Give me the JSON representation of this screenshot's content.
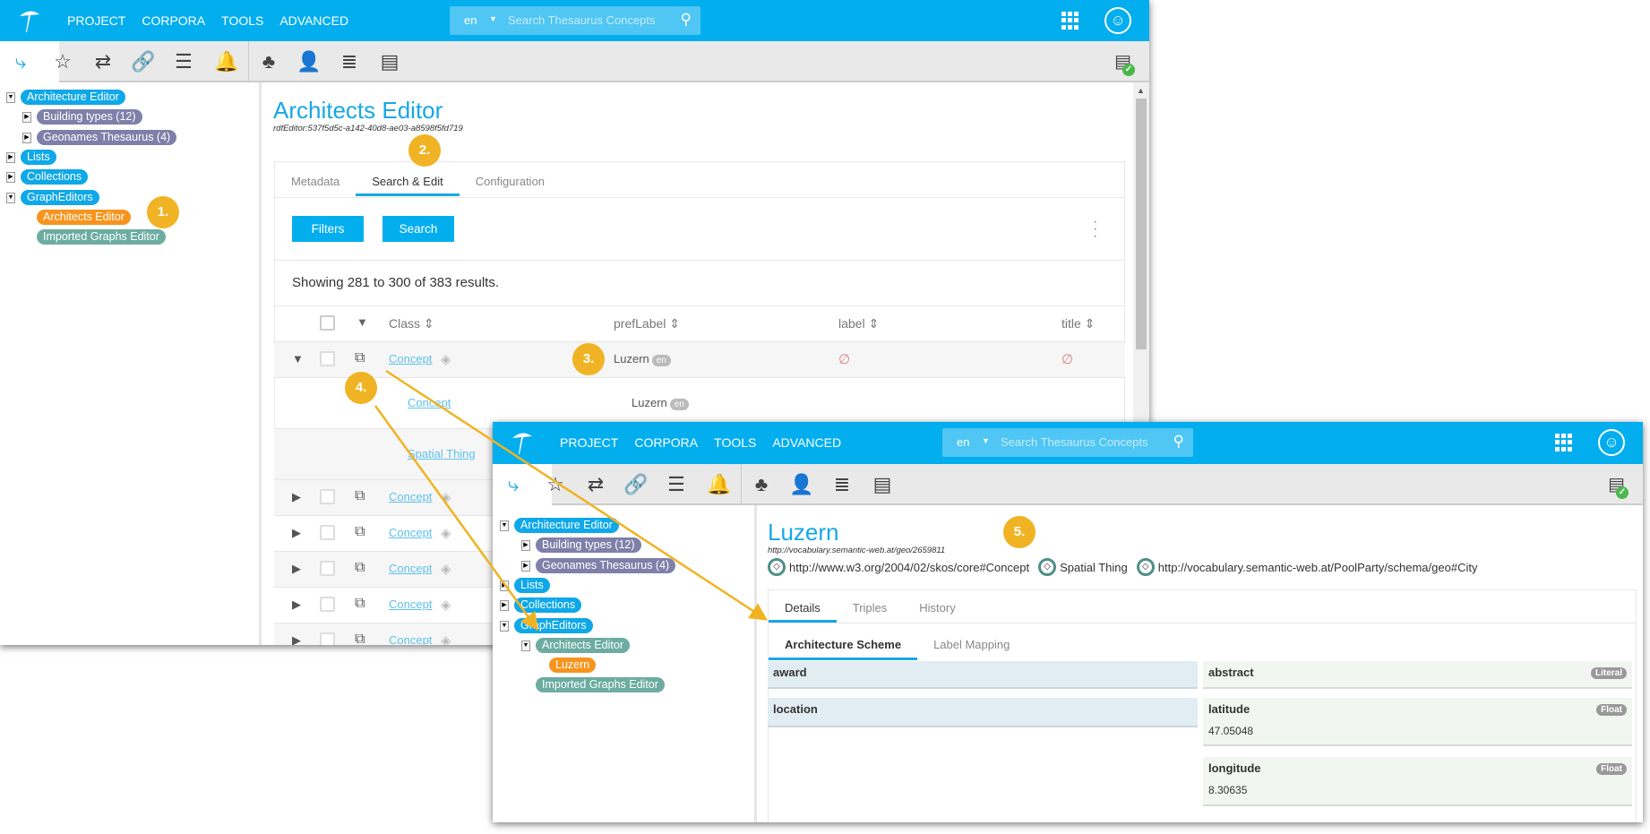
{
  "colors": {
    "header": "#03aeef",
    "accent": "#17a7e6",
    "annotation": "#f0b323",
    "pill_blue": "#0fa8e8",
    "pill_purple": "#7f80a9",
    "pill_orange": "#f7941d",
    "pill_teal": "#6caca1"
  },
  "header": {
    "menu": [
      "PROJECT",
      "CORPORA",
      "TOOLS",
      "ADVANCED"
    ],
    "lang": "en",
    "search_placeholder": "Search Thesaurus Concepts"
  },
  "toolbar_icons": [
    "hierarchy-tree-icon",
    "favorite-document-icon",
    "translate-icon",
    "link-icon",
    "list-icon",
    "bell-icon",
    "org-chart-icon",
    "user-settings-icon",
    "database-icon",
    "server-icon"
  ],
  "window1": {
    "tree": [
      {
        "label": "Architecture Editor",
        "color": "blue",
        "level": 0,
        "toggle": "open"
      },
      {
        "label": "Building types (12)",
        "color": "purple",
        "level": 1,
        "toggle": "closed"
      },
      {
        "label": "Geonames Thesaurus (4)",
        "color": "purple",
        "level": 1,
        "toggle": "closed"
      },
      {
        "label": "Lists",
        "color": "blue",
        "level": 0,
        "toggle": "closed"
      },
      {
        "label": "Collections",
        "color": "blue",
        "level": 0,
        "toggle": "closed"
      },
      {
        "label": "GraphEditors",
        "color": "blue",
        "level": 0,
        "toggle": "open"
      },
      {
        "label": "Architects Editor",
        "color": "orange",
        "level": 1,
        "toggle": ""
      },
      {
        "label": "Imported Graphs Editor",
        "color": "teal",
        "level": 1,
        "toggle": ""
      }
    ],
    "title": "Architects Editor",
    "id": "rdfEditor:537f5d5c-a142-40d8-ae03-a8598f5fd719",
    "tabs": [
      "Metadata",
      "Search & Edit",
      "Configuration"
    ],
    "active_tab": "Search & Edit",
    "filters_label": "Filters",
    "search_label": "Search",
    "results_text": "Showing 281 to 300 of 383 results.",
    "columns": [
      "Class",
      "prefLabel",
      "label",
      "title"
    ],
    "row1": {
      "class": "Concept",
      "prefLabel": "Luzern",
      "lang": "en",
      "label": "∅",
      "title": "∅"
    },
    "expanded": [
      {
        "class": "Concept",
        "prefLabel": "Luzern",
        "lang": "en"
      },
      {
        "class": "Spatial Thing"
      }
    ],
    "rows": [
      "Concept",
      "Concept",
      "Concept",
      "Concept",
      "Concept"
    ]
  },
  "window2": {
    "tree": [
      {
        "label": "Architecture Editor",
        "color": "blue",
        "level": 0,
        "toggle": "open"
      },
      {
        "label": "Building types (12)",
        "color": "purple",
        "level": 1,
        "toggle": "closed"
      },
      {
        "label": "Geonames Thesaurus (4)",
        "color": "purple",
        "level": 1,
        "toggle": "closed"
      },
      {
        "label": "Lists",
        "color": "blue",
        "level": 0,
        "toggle": "closed"
      },
      {
        "label": "Collections",
        "color": "blue",
        "level": 0,
        "toggle": "closed"
      },
      {
        "label": "GraphEditors",
        "color": "blue",
        "level": 0,
        "toggle": "open"
      },
      {
        "label": "Architects Editor",
        "color": "teal",
        "level": 1,
        "toggle": "open"
      },
      {
        "label": "Luzern",
        "color": "orange",
        "level": 2,
        "toggle": ""
      },
      {
        "label": "Imported Graphs Editor",
        "color": "teal",
        "level": 1,
        "toggle": ""
      }
    ],
    "title": "Luzern",
    "uri": "http://vocabulary.semantic-web.at/geo/2659811",
    "types": [
      "http://www.w3.org/2004/02/skos/core#Concept",
      "Spatial Thing",
      "http://vocabulary.semantic-web.at/PoolParty/schema/geo#City"
    ],
    "tabs": [
      "Details",
      "Triples",
      "History"
    ],
    "subtabs": [
      "Architecture Scheme",
      "Label Mapping"
    ],
    "left_fields": [
      "award",
      "location"
    ],
    "right_fields": [
      {
        "name": "abstract",
        "type": "Literal",
        "value": ""
      },
      {
        "name": "latitude",
        "type": "Float",
        "value": "47.05048"
      },
      {
        "name": "longitude",
        "type": "Float",
        "value": "8.30635"
      }
    ]
  },
  "annotations": [
    "1.",
    "2.",
    "3.",
    "4.",
    "5."
  ]
}
